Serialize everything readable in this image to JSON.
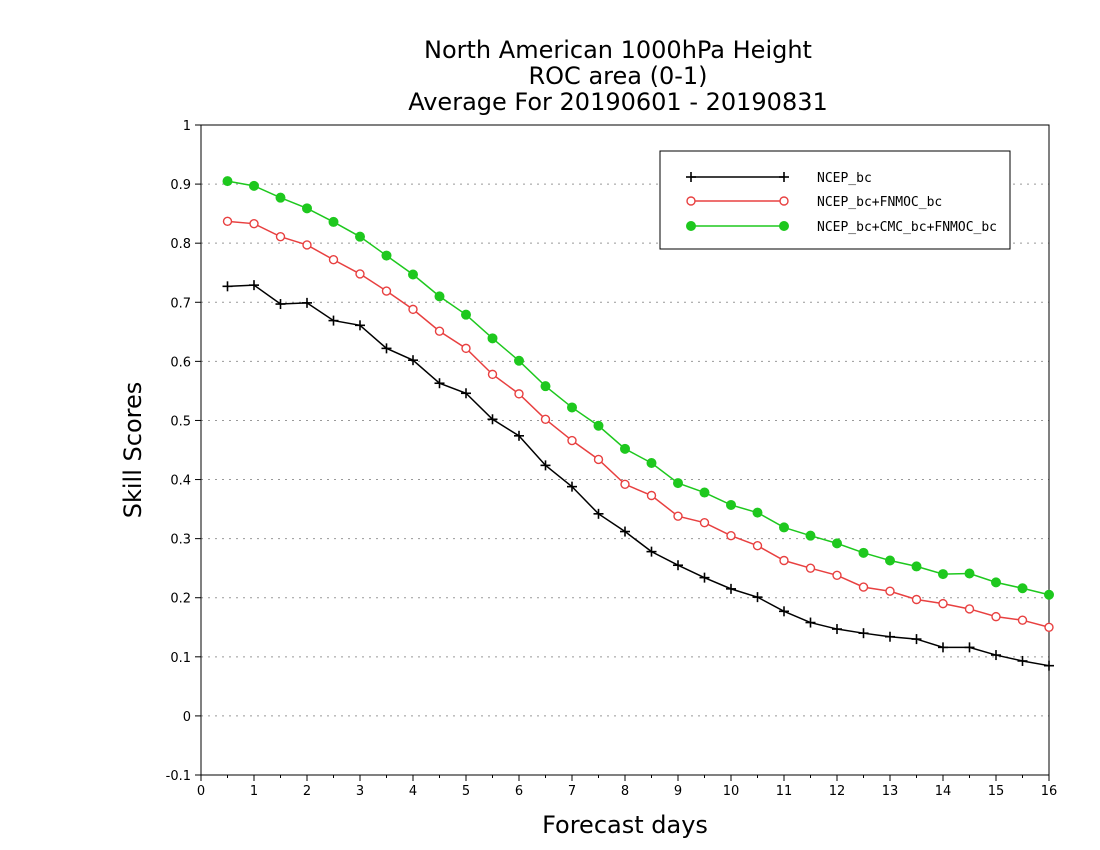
{
  "chart_data": {
    "type": "line",
    "title_lines": [
      "North American 1000hPa Height",
      "ROC area (0-1)",
      "Average For 20190601 - 20190831"
    ],
    "xlabel": "Forecast days",
    "ylabel": "Skill Scores",
    "xlim": [
      0,
      16
    ],
    "ylim": [
      -0.1,
      1
    ],
    "x_ticks": [
      "0",
      "1",
      "2",
      "3",
      "4",
      "5",
      "6",
      "7",
      "8",
      "9",
      "10",
      "11",
      "12",
      "13",
      "14",
      "15",
      "16"
    ],
    "y_ticks": [
      "-0.1",
      "0",
      "0.1",
      "0.2",
      "0.3",
      "0.4",
      "0.5",
      "0.6",
      "0.7",
      "0.8",
      "0.9",
      "1"
    ],
    "grid": "horizontal-dotted",
    "legend_position": "top-right",
    "x": [
      0.5,
      1,
      1.5,
      2,
      2.5,
      3,
      3.5,
      4,
      4.5,
      5,
      5.5,
      6,
      6.5,
      7,
      7.5,
      8,
      8.5,
      9,
      9.5,
      10,
      10.5,
      11,
      11.5,
      12,
      12.5,
      13,
      13.5,
      14,
      14.5,
      15,
      15.5,
      16
    ],
    "series": [
      {
        "name": "NCEP_bc",
        "color": "#000000",
        "marker": "plus",
        "values": [
          0.727,
          0.729,
          0.697,
          0.699,
          0.669,
          0.661,
          0.622,
          0.602,
          0.563,
          0.546,
          0.502,
          0.474,
          0.424,
          0.388,
          0.342,
          0.312,
          0.278,
          0.255,
          0.234,
          0.215,
          0.201,
          0.177,
          0.158,
          0.147,
          0.14,
          0.134,
          0.13,
          0.116,
          0.116,
          0.103,
          0.093,
          0.085
        ]
      },
      {
        "name": "NCEP_bc+FNMOC_bc",
        "color": "#e84040",
        "marker": "open-circle",
        "values": [
          0.837,
          0.833,
          0.811,
          0.797,
          0.772,
          0.748,
          0.719,
          0.688,
          0.651,
          0.622,
          0.578,
          0.545,
          0.502,
          0.466,
          0.434,
          0.392,
          0.373,
          0.338,
          0.327,
          0.305,
          0.288,
          0.263,
          0.25,
          0.238,
          0.218,
          0.211,
          0.197,
          0.19,
          0.181,
          0.168,
          0.162,
          0.15
        ]
      },
      {
        "name": "NCEP_bc+CMC_bc+FNMOC_bc",
        "color": "#1ec81e",
        "marker": "filled-circle",
        "values": [
          0.905,
          0.897,
          0.877,
          0.859,
          0.836,
          0.811,
          0.779,
          0.747,
          0.71,
          0.679,
          0.639,
          0.601,
          0.558,
          0.522,
          0.491,
          0.452,
          0.428,
          0.394,
          0.378,
          0.357,
          0.344,
          0.319,
          0.305,
          0.292,
          0.276,
          0.263,
          0.253,
          0.24,
          0.241,
          0.226,
          0.216,
          0.205
        ]
      }
    ]
  }
}
